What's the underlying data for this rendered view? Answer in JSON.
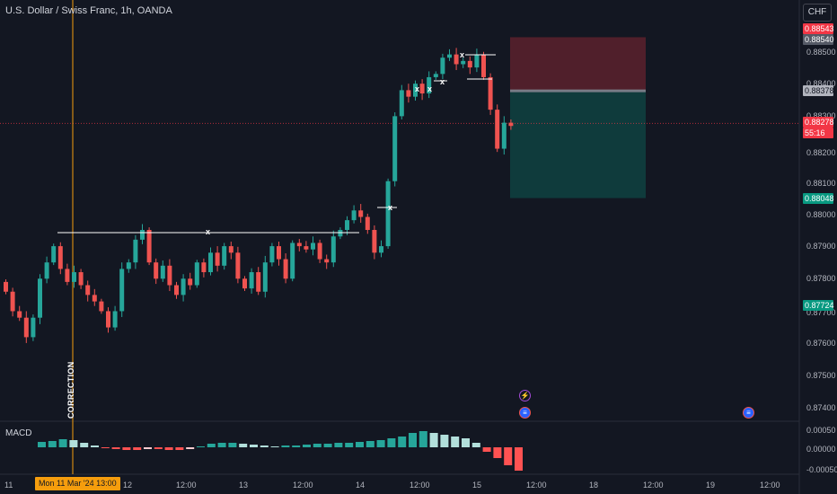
{
  "header": {
    "title": "U.S. Dollar / Swiss Franc, 1h, OANDA",
    "currency_button": "CHF"
  },
  "price_axis": {
    "ticks": [
      "0.88500",
      "0.88400",
      "0.88300",
      "0.88200",
      "0.88100",
      "0.88000",
      "0.87900",
      "0.87800",
      "0.87700",
      "0.87600",
      "0.87500",
      "0.87400"
    ],
    "labels": [
      {
        "text": "0.88543",
        "color": "#f23645"
      },
      {
        "text": "0.88540",
        "color": "#555a66"
      },
      {
        "text": "0.88378",
        "color": "#b2b5be"
      },
      {
        "text": "0.88278",
        "color": "#f23645"
      },
      {
        "text": "55:16",
        "color": "#f23645"
      },
      {
        "text": "0.88048",
        "color": "#089981"
      },
      {
        "text": "0.87724",
        "color": "#089981"
      }
    ]
  },
  "macd": {
    "label": "MACD",
    "ticks": [
      "0.00050",
      "0.00000",
      "-0.00050"
    ]
  },
  "time_axis": {
    "ticks": [
      "11",
      "12",
      "12:00",
      "13",
      "12:00",
      "14",
      "12:00",
      "15",
      "12:00",
      "18",
      "12:00",
      "19",
      "12:00"
    ],
    "crosshair_date": "Mon 11 Mar '24   13:00"
  },
  "annotations": {
    "vertical_text": "CORRECTION",
    "x_marks": [
      "x",
      "x",
      "x",
      "x",
      "x",
      "x"
    ],
    "event_icons": [
      "lightning-icon",
      "us-flag-icon",
      "us-flag-icon"
    ]
  },
  "colors": {
    "bull": "#26a69a",
    "bear": "#ef5350",
    "background": "#131722",
    "crosshair": "#f59d0d"
  },
  "chart_data": {
    "type": "candlestick",
    "symbol": "USDCHF",
    "timeframe": "1h",
    "price_range": [
      0.8737,
      0.8863
    ],
    "position": {
      "entry": 0.88378,
      "stop": 0.88543,
      "target": 0.88048
    },
    "last_price": 0.88278,
    "close_path": [
      0.8776,
      0.877,
      0.8768,
      0.8762,
      0.8768,
      0.878,
      0.8785,
      0.879,
      0.8783,
      0.8779,
      0.8782,
      0.8778,
      0.8775,
      0.8773,
      0.877,
      0.8765,
      0.877,
      0.8783,
      0.8785,
      0.8792,
      0.8795,
      0.8785,
      0.878,
      0.8784,
      0.8778,
      0.8775,
      0.878,
      0.8778,
      0.8785,
      0.8782,
      0.8788,
      0.8784,
      0.879,
      0.8788,
      0.878,
      0.8777,
      0.8782,
      0.8776,
      0.8785,
      0.879,
      0.8786,
      0.878,
      0.8791,
      0.879,
      0.8789,
      0.8791,
      0.8786,
      0.8785,
      0.8793,
      0.8795,
      0.8798,
      0.8801,
      0.8799,
      0.8795,
      0.8788,
      0.879,
      0.881,
      0.883,
      0.8838,
      0.8836,
      0.884,
      0.8837,
      0.8842,
      0.8843,
      0.8848,
      0.8849,
      0.8846,
      0.8847,
      0.8845,
      0.8849,
      0.8842,
      0.8832,
      0.882,
      0.8828,
      0.8827
    ],
    "macd_hist": [
      6e-05,
      7e-05,
      9e-05,
      8e-05,
      5e-05,
      2e-05,
      -1e-05,
      -2e-05,
      -3e-05,
      -3e-05,
      -2e-05,
      -2e-05,
      -3e-05,
      -3e-05,
      -2e-05,
      1e-05,
      4e-05,
      5e-05,
      5e-05,
      4e-05,
      3e-05,
      2e-05,
      1e-05,
      2e-05,
      2e-05,
      3e-05,
      4e-05,
      4e-05,
      5e-05,
      5e-05,
      6e-05,
      7e-05,
      8e-05,
      0.0001,
      0.00012,
      0.00016,
      0.00018,
      0.00016,
      0.00014,
      0.00012,
      0.0001,
      5e-05,
      -5e-05,
      -0.00012,
      -0.0002,
      -0.00026
    ]
  }
}
